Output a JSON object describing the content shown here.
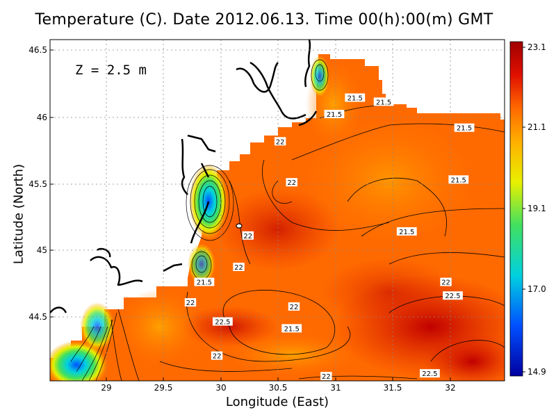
{
  "title": "Temperature (C). Date 2012.06.13. Time 00(h):00(m) GMT",
  "depth_label": "Z = 2.5 m",
  "axes": {
    "xlabel": "Longitude (East)",
    "ylabel": "Latitude (North)",
    "xlim": [
      28.5,
      32.45
    ],
    "ylim": [
      44.05,
      46.55
    ],
    "xticks": [
      "29",
      "29.5",
      "30",
      "30.5",
      "31",
      "31.5",
      "32"
    ],
    "yticks": [
      "44.5",
      "45",
      "45.5",
      "46",
      "46.5"
    ],
    "grid": true
  },
  "colorbar": {
    "ticks": [
      "23.1",
      "21.1",
      "19.1",
      "17.0",
      "14.9"
    ],
    "range": [
      14.9,
      23.1
    ],
    "colors": [
      "#0000a0",
      "#0050ff",
      "#00d0e0",
      "#40e060",
      "#e8f000",
      "#ffb000",
      "#ff6a00",
      "#e01000",
      "#a00000"
    ]
  },
  "chart_data": {
    "type": "heatmap",
    "title": "Temperature (C). Date 2012.06.13. Time 00(h):00(m) GMT",
    "xlabel": "Longitude (East)",
    "ylabel": "Latitude (North)",
    "contour_labels": [
      {
        "text": "21.5",
        "lon": 31.15,
        "lat": 46.12
      },
      {
        "text": "21.5",
        "lon": 31.4,
        "lat": 46.09
      },
      {
        "text": "21.5",
        "lon": 30.97,
        "lat": 46.0
      },
      {
        "text": "21.5",
        "lon": 32.1,
        "lat": 45.9
      },
      {
        "text": "22",
        "lon": 30.5,
        "lat": 45.8
      },
      {
        "text": "22",
        "lon": 30.6,
        "lat": 45.5
      },
      {
        "text": "21.5",
        "lon": 32.05,
        "lat": 45.52
      },
      {
        "text": "22",
        "lon": 30.22,
        "lat": 45.11
      },
      {
        "text": "21.5",
        "lon": 31.6,
        "lat": 45.14
      },
      {
        "text": "22",
        "lon": 30.14,
        "lat": 44.88
      },
      {
        "text": "21.5",
        "lon": 29.84,
        "lat": 44.77
      },
      {
        "text": "22",
        "lon": 29.72,
        "lat": 44.62
      },
      {
        "text": "22",
        "lon": 31.94,
        "lat": 44.77
      },
      {
        "text": "22.5",
        "lon": 32.0,
        "lat": 44.67
      },
      {
        "text": "22",
        "lon": 30.62,
        "lat": 44.59
      },
      {
        "text": "22.5",
        "lon": 30.0,
        "lat": 44.48
      },
      {
        "text": "21.5",
        "lon": 30.6,
        "lat": 44.43
      },
      {
        "text": "22",
        "lon": 29.95,
        "lat": 44.23
      },
      {
        "text": "22",
        "lon": 30.9,
        "lat": 44.08
      },
      {
        "text": "22.5",
        "lon": 31.8,
        "lat": 44.1
      }
    ],
    "anomalies": [
      {
        "lon": 29.9,
        "lat": 45.37,
        "value": 16.5
      },
      {
        "lon": 29.73,
        "lat": 45.1,
        "value": 20.3
      },
      {
        "lon": 28.7,
        "lat": 44.1,
        "value": 15.5
      },
      {
        "lon": 28.9,
        "lat": 44.38,
        "value": 19.8
      },
      {
        "lon": 30.9,
        "lat": 46.3,
        "value": 20.8
      }
    ],
    "base_value": 21.8
  }
}
